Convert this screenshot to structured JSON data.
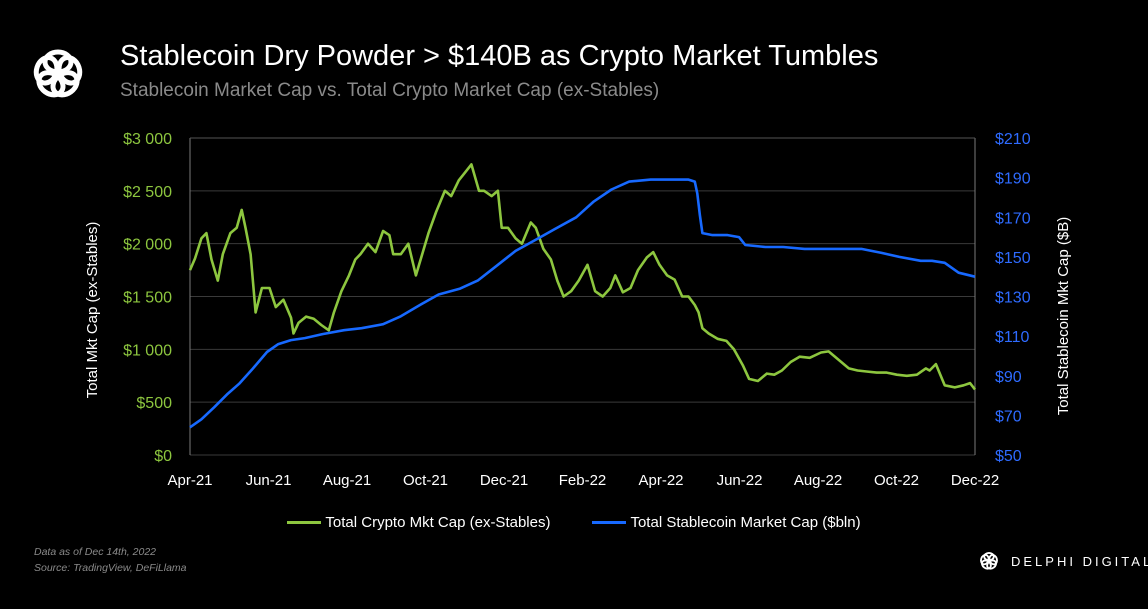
{
  "header": {
    "title": "Stablecoin Dry Powder > $140B as Crypto Market Tumbles",
    "subtitle": "Stablecoin Market Cap vs. Total Crypto Market Cap (ex-Stables)"
  },
  "colors": {
    "background": "#000000",
    "crypto_series": "#8dc63f",
    "stablecoin_series": "#1769ff",
    "left_axis_text": "#8dc63f",
    "right_axis_text": "#2e6bff",
    "gridline": "#3a3a3a"
  },
  "icons": {
    "logo": "delphi-knot-logo-icon"
  },
  "chart_data": {
    "type": "line",
    "title": "Stablecoin Dry Powder > $140B as Crypto Market Tumbles",
    "subtitle": "Stablecoin Market Cap vs. Total Crypto Market Cap (ex-Stables)",
    "x_ticks": [
      "Apr-21",
      "Jun-21",
      "Aug-21",
      "Oct-21",
      "Dec-21",
      "Feb-22",
      "Apr-22",
      "Jun-22",
      "Aug-22",
      "Oct-22",
      "Dec-22"
    ],
    "x_range": [
      "2021-04-01",
      "2022-12-14"
    ],
    "y_left": {
      "label": "Total Mkt Cap (ex-Stables)",
      "range": [
        0,
        3000
      ],
      "tick_labels": [
        "$0",
        "$500",
        "$1 000",
        "$1 500",
        "$2 000",
        "$2 500",
        "$3 000"
      ],
      "tick_values": [
        0,
        500,
        1000,
        1500,
        2000,
        2500,
        3000
      ]
    },
    "y_right": {
      "label": "Total Stablecoin Mkt Cap ($B)",
      "range": [
        50,
        210
      ],
      "tick_labels": [
        "$50",
        "$70",
        "$90",
        "$110",
        "$130",
        "$150",
        "$170",
        "$190",
        "$210"
      ],
      "tick_values": [
        50,
        70,
        90,
        110,
        130,
        150,
        170,
        190,
        210
      ]
    },
    "grid": "horizontal",
    "legend_position": "bottom",
    "series": [
      {
        "name": "Total Crypto Mkt Cap (ex-Stables)",
        "axis": "left",
        "x": [
          "2021-04-01",
          "2021-04-05",
          "2021-04-10",
          "2021-04-14",
          "2021-04-18",
          "2021-04-23",
          "2021-04-27",
          "2021-05-03",
          "2021-05-08",
          "2021-05-12",
          "2021-05-15",
          "2021-05-19",
          "2021-05-23",
          "2021-05-28",
          "2021-06-03",
          "2021-06-08",
          "2021-06-14",
          "2021-06-20",
          "2021-06-22",
          "2021-06-26",
          "2021-07-02",
          "2021-07-08",
          "2021-07-14",
          "2021-07-20",
          "2021-07-24",
          "2021-07-30",
          "2021-08-05",
          "2021-08-10",
          "2021-08-14",
          "2021-08-20",
          "2021-08-26",
          "2021-09-01",
          "2021-09-06",
          "2021-09-09",
          "2021-09-15",
          "2021-09-21",
          "2021-09-27",
          "2021-10-02",
          "2021-10-07",
          "2021-10-13",
          "2021-10-20",
          "2021-10-25",
          "2021-10-31",
          "2021-11-04",
          "2021-11-10",
          "2021-11-16",
          "2021-11-20",
          "2021-11-26",
          "2021-12-01",
          "2021-12-04",
          "2021-12-09",
          "2021-12-15",
          "2021-12-20",
          "2021-12-27",
          "2021-12-31",
          "2022-01-06",
          "2022-01-12",
          "2022-01-17",
          "2022-01-22",
          "2022-01-28",
          "2022-02-03",
          "2022-02-10",
          "2022-02-16",
          "2022-02-22",
          "2022-02-28",
          "2022-03-04",
          "2022-03-10",
          "2022-03-16",
          "2022-03-22",
          "2022-03-29",
          "2022-04-03",
          "2022-04-08",
          "2022-04-14",
          "2022-04-20",
          "2022-04-26",
          "2022-05-01",
          "2022-05-06",
          "2022-05-09",
          "2022-05-12",
          "2022-05-17",
          "2022-05-24",
          "2022-05-31",
          "2022-06-06",
          "2022-06-13",
          "2022-06-18",
          "2022-06-25",
          "2022-07-02",
          "2022-07-08",
          "2022-07-14",
          "2022-07-21",
          "2022-07-28",
          "2022-08-05",
          "2022-08-14",
          "2022-08-20",
          "2022-08-28",
          "2022-09-05",
          "2022-09-12",
          "2022-09-19",
          "2022-09-27",
          "2022-10-05",
          "2022-10-13",
          "2022-10-21",
          "2022-10-29",
          "2022-11-05",
          "2022-11-08",
          "2022-11-13",
          "2022-11-20",
          "2022-11-28",
          "2022-12-05",
          "2022-12-10",
          "2022-12-14"
        ],
        "values": [
          1750,
          1860,
          2050,
          2100,
          1850,
          1650,
          1900,
          2100,
          2150,
          2320,
          2150,
          1900,
          1350,
          1580,
          1580,
          1400,
          1470,
          1300,
          1150,
          1250,
          1310,
          1290,
          1230,
          1180,
          1350,
          1550,
          1700,
          1850,
          1900,
          2000,
          1920,
          2120,
          2080,
          1900,
          1900,
          2000,
          1700,
          1900,
          2100,
          2300,
          2500,
          2450,
          2600,
          2660,
          2750,
          2500,
          2500,
          2450,
          2500,
          2150,
          2150,
          2050,
          2000,
          2200,
          2150,
          1950,
          1850,
          1650,
          1500,
          1550,
          1650,
          1800,
          1550,
          1500,
          1580,
          1700,
          1540,
          1580,
          1750,
          1870,
          1920,
          1800,
          1700,
          1660,
          1500,
          1500,
          1420,
          1350,
          1200,
          1150,
          1100,
          1080,
          1000,
          850,
          720,
          700,
          770,
          760,
          800,
          880,
          930,
          920,
          970,
          980,
          900,
          820,
          800,
          790,
          780,
          780,
          760,
          750,
          760,
          820,
          800,
          860,
          660,
          640,
          660,
          680,
          620
        ]
      },
      {
        "name": "Total Stablecoin Market Cap ($bln)",
        "axis": "right",
        "x": [
          "2021-04-01",
          "2021-04-10",
          "2021-04-20",
          "2021-05-01",
          "2021-05-10",
          "2021-05-20",
          "2021-06-01",
          "2021-06-10",
          "2021-06-20",
          "2021-07-01",
          "2021-07-15",
          "2021-08-01",
          "2021-08-15",
          "2021-09-01",
          "2021-09-15",
          "2021-10-01",
          "2021-10-15",
          "2021-11-01",
          "2021-11-15",
          "2021-12-01",
          "2021-12-15",
          "2022-01-01",
          "2022-01-15",
          "2022-02-01",
          "2022-02-15",
          "2022-03-01",
          "2022-03-15",
          "2022-04-01",
          "2022-04-15",
          "2022-05-01",
          "2022-05-06",
          "2022-05-08",
          "2022-05-10",
          "2022-05-12",
          "2022-05-20",
          "2022-06-01",
          "2022-06-10",
          "2022-06-15",
          "2022-07-01",
          "2022-07-15",
          "2022-08-01",
          "2022-08-15",
          "2022-09-01",
          "2022-09-15",
          "2022-10-01",
          "2022-10-15",
          "2022-11-01",
          "2022-11-10",
          "2022-11-20",
          "2022-12-01",
          "2022-12-14"
        ],
        "values": [
          64,
          68,
          74,
          81,
          86,
          93,
          102,
          106,
          108,
          109,
          111,
          113,
          114,
          116,
          120,
          126,
          131,
          134,
          138,
          146,
          153,
          159,
          164,
          170,
          178,
          184,
          188,
          189,
          189,
          189,
          188,
          182,
          171,
          162,
          161,
          161,
          160,
          156,
          155,
          155,
          154,
          154,
          154,
          154,
          152,
          150,
          148,
          148,
          147,
          142,
          140
        ]
      }
    ]
  },
  "legend": {
    "crypto_label": "Total Crypto Mkt Cap (ex-Stables)",
    "stable_label": "Total Stablecoin Market Cap ($bln)"
  },
  "footnote": {
    "line1": "Data as of Dec 14th, 2022",
    "line2": "Source: TradingView,  DeFiLlama"
  },
  "brand": {
    "name": "DELPHI DIGITAL"
  }
}
